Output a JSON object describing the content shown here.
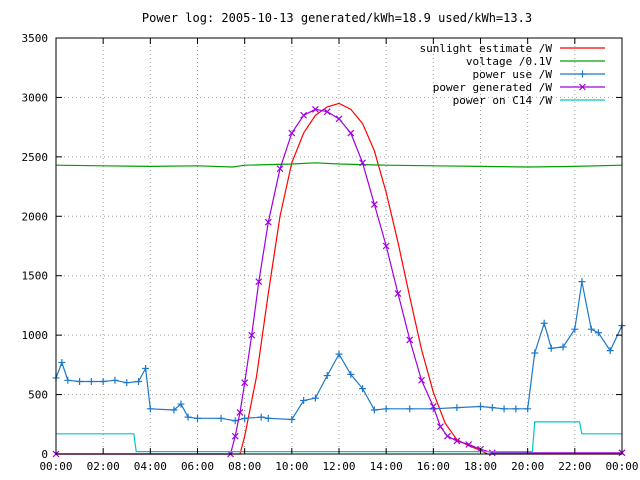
{
  "chart_data": {
    "type": "line",
    "title": "Power log: 2005-10-13 generated/kWh=18.9 used/kWh=13.3",
    "xlabel": "",
    "ylabel": "",
    "xlim": [
      0,
      24
    ],
    "ylim": [
      0,
      3500
    ],
    "grid": true,
    "legend_position": "top-right",
    "x_ticks": [
      "00:00",
      "02:00",
      "04:00",
      "06:00",
      "08:00",
      "10:00",
      "12:00",
      "14:00",
      "16:00",
      "18:00",
      "20:00",
      "22:00",
      "00:00"
    ],
    "y_ticks": [
      "0",
      "500",
      "1000",
      "1500",
      "2000",
      "2500",
      "3000",
      "3500"
    ],
    "series": [
      {
        "name": "sunlight estimate /W",
        "color": "#ff0000",
        "style": "line",
        "x": [
          0,
          7.8,
          8.0,
          8.5,
          9.0,
          9.5,
          10.0,
          10.5,
          11.0,
          11.5,
          12.0,
          12.5,
          13.0,
          13.5,
          14.0,
          14.5,
          15.0,
          15.5,
          16.0,
          16.5,
          17.0,
          17.5,
          18.0,
          18.3,
          24
        ],
        "y": [
          0,
          0,
          150,
          650,
          1350,
          2000,
          2450,
          2700,
          2850,
          2920,
          2950,
          2900,
          2780,
          2550,
          2200,
          1780,
          1320,
          880,
          520,
          260,
          120,
          70,
          30,
          0,
          0
        ]
      },
      {
        "name": "voltage /0.1V",
        "color": "#00a000",
        "style": "line",
        "x": [
          0,
          2,
          4,
          6,
          7.5,
          8,
          9,
          10,
          11,
          12,
          14,
          16,
          18,
          20,
          22,
          24
        ],
        "y": [
          2430,
          2425,
          2420,
          2425,
          2415,
          2430,
          2435,
          2440,
          2450,
          2440,
          2430,
          2425,
          2420,
          2415,
          2420,
          2430
        ]
      },
      {
        "name": "power use /W",
        "color": "#1e78c8",
        "style": "linepoints",
        "x": [
          0,
          0.25,
          0.5,
          1,
          1.5,
          2,
          2.5,
          3,
          3.5,
          3.8,
          4,
          5,
          5.3,
          5.6,
          6,
          7,
          7.6,
          8,
          8.7,
          9,
          10,
          10.5,
          11,
          11.5,
          12,
          12.5,
          13,
          13.5,
          14,
          15,
          16,
          17,
          18,
          18.5,
          19,
          19.5,
          20,
          20.3,
          20.7,
          21,
          21.5,
          22,
          22.3,
          22.7,
          23,
          23.5,
          24
        ],
        "y": [
          640,
          770,
          620,
          610,
          610,
          610,
          620,
          600,
          610,
          720,
          380,
          370,
          420,
          310,
          300,
          300,
          280,
          300,
          310,
          300,
          290,
          450,
          470,
          660,
          840,
          670,
          550,
          370,
          380,
          380,
          380,
          390,
          400,
          390,
          380,
          380,
          380,
          850,
          1100,
          890,
          900,
          1050,
          1450,
          1050,
          1020,
          870,
          1080
        ]
      },
      {
        "name": "power generated /W",
        "color": "#a000e0",
        "style": "linepoints",
        "x": [
          0,
          7.4,
          7.6,
          7.8,
          8.0,
          8.3,
          8.6,
          9.0,
          9.5,
          10.0,
          10.5,
          11.0,
          11.5,
          12.0,
          12.5,
          13.0,
          13.5,
          14.0,
          14.5,
          15.0,
          15.5,
          16.0,
          16.3,
          16.6,
          17.0,
          17.5,
          18.0,
          18.5,
          24
        ],
        "y": [
          0,
          0,
          150,
          350,
          600,
          1000,
          1450,
          1950,
          2400,
          2700,
          2850,
          2900,
          2880,
          2820,
          2700,
          2450,
          2100,
          1750,
          1350,
          960,
          620,
          400,
          230,
          150,
          110,
          80,
          40,
          10,
          10
        ]
      },
      {
        "name": "power on C14 /W",
        "color": "#00c8c8",
        "style": "line",
        "x": [
          0,
          3.3,
          3.4,
          20.2,
          20.3,
          22.2,
          22.3,
          24
        ],
        "y": [
          170,
          170,
          20,
          20,
          270,
          270,
          170,
          170
        ]
      }
    ]
  }
}
